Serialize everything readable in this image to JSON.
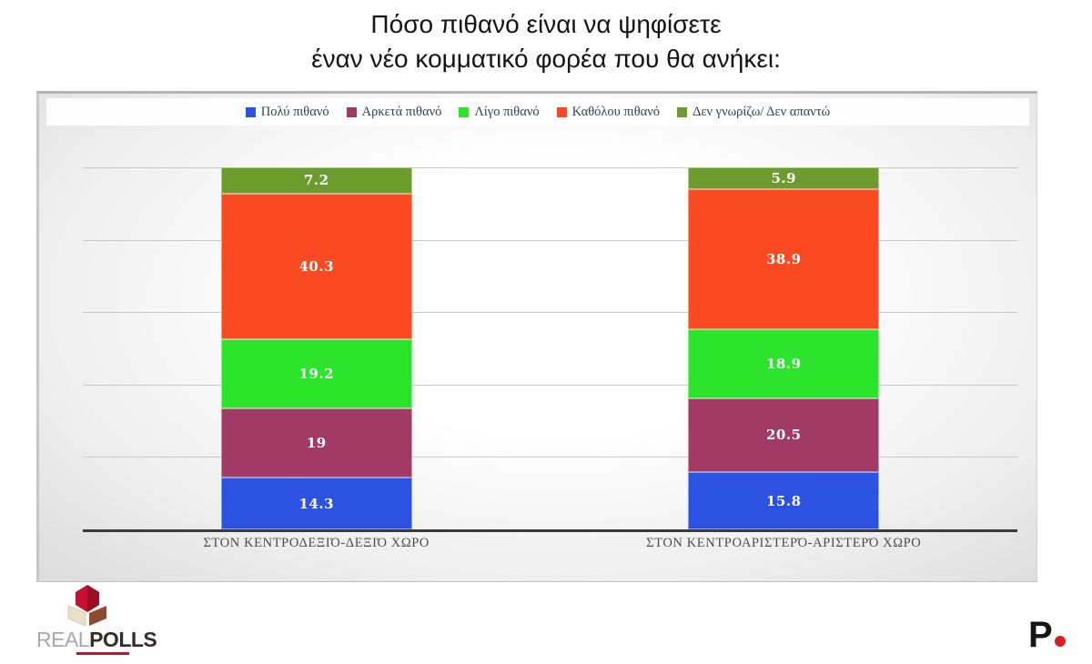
{
  "title": {
    "line1": "Πόσο πιθανό είναι να ψηφίσετε",
    "line2": "έναν νέο κομματικό φορέα που θα ανήκει:"
  },
  "chart_data": {
    "type": "bar",
    "variant": "stacked-column",
    "stacked": true,
    "grid": true,
    "legend_position": "top",
    "ylim": [
      0,
      100
    ],
    "gridline_step": 20,
    "categories": [
      "ΣΤΟΝ ΚΕΝΤΡΟΔΕΞΙΌ-ΔΕΞΙΌ ΧΩΡΟ",
      "ΣΤΟΝ ΚΕΝΤΡΟΑΡΙΣΤΕΡΌ-ΑΡΙΣΤΕΡΌ ΧΩΡΟ"
    ],
    "series": [
      {
        "name": "Πολύ πιθανό",
        "color": "#2B52E0",
        "values": [
          14.3,
          15.8
        ]
      },
      {
        "name": "Αρκετά πιθανό",
        "color": "#A13A64",
        "values": [
          19,
          20.5
        ]
      },
      {
        "name": "Λίγο πιθανό",
        "color": "#2DE42D",
        "values": [
          19.2,
          18.9
        ]
      },
      {
        "name": "Καθόλου πιθανό",
        "color": "#F94A21",
        "values": [
          40.3,
          38.9
        ]
      },
      {
        "name": "Δεν γνωρίζω/ Δεν απαντώ",
        "color": "#6E9B2D",
        "values": [
          7.2,
          5.9
        ]
      }
    ]
  },
  "branding": {
    "realpolls": {
      "word_light": "REAL",
      "word_bold": "POLLS",
      "cube_colors": {
        "red": "#C8102E",
        "red_dark": "#9C0E24",
        "brown": "#8C4A2F",
        "cream": "#EADFC8"
      }
    },
    "p_logo": {
      "letter": "P",
      "dot_color": "#DC1E26"
    }
  }
}
